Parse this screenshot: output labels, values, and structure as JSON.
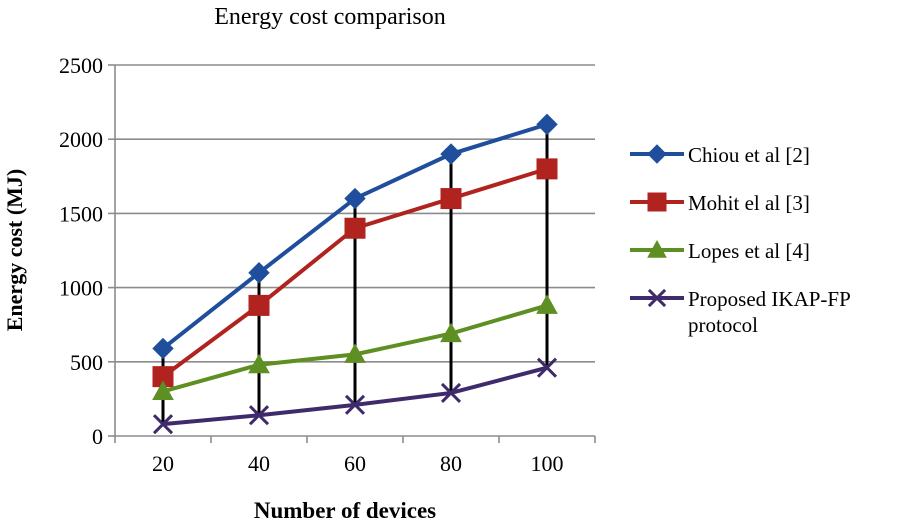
{
  "chart_data": {
    "type": "line",
    "title": "Energy cost comparison",
    "xlabel": "Number of devices",
    "ylabel": "Energy cost (MJ)",
    "categories": [
      "20",
      "40",
      "60",
      "80",
      "100"
    ],
    "ylim": [
      0,
      2500
    ],
    "yticks": [
      0,
      500,
      1000,
      1500,
      2000,
      2500
    ],
    "grid": true,
    "legend_position": "right",
    "series": [
      {
        "name": "Chiou et al [2]",
        "values": [
          590,
          1100,
          1600,
          1900,
          2100
        ],
        "color": "#1f4e9c",
        "marker": "diamond"
      },
      {
        "name": "Mohit el al [3]",
        "values": [
          400,
          880,
          1400,
          1600,
          1800
        ],
        "color": "#b0231e",
        "marker": "square"
      },
      {
        "name": "Lopes et al [4]",
        "values": [
          300,
          480,
          550,
          690,
          880
        ],
        "color": "#5e8f22",
        "marker": "triangle"
      },
      {
        "name": "Proposed IKAP-FP\nprotocol",
        "values": [
          80,
          140,
          210,
          290,
          460
        ],
        "color": "#3f2a6b",
        "marker": "x"
      }
    ]
  }
}
